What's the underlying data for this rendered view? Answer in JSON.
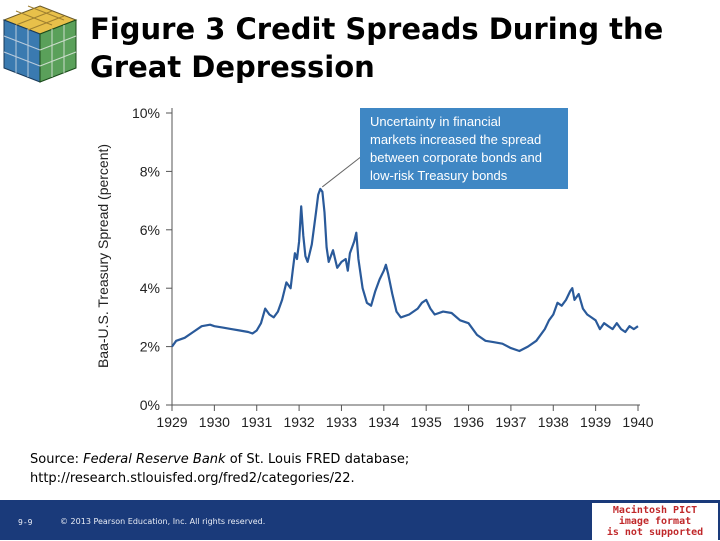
{
  "title_line1": "Figure 3  Credit Spreads During the",
  "title_line2": "Great Depression",
  "source": {
    "prefix": "Source: ",
    "italic": "Federal Reserve Bank",
    "rest": " of St. Louis FRED database;",
    "url": "http://research.stlouisfed.org/fred2/categories/22."
  },
  "footer": {
    "page": "9-9",
    "copyright": "© 2013 Pearson Education, Inc. All rights reserved."
  },
  "pict_notice": [
    "Macintosh PICT",
    "image format",
    "is not supported"
  ],
  "chart_data": {
    "type": "line",
    "title": "Figure 3  Credit Spreads During the Great Depression",
    "xlabel": "",
    "ylabel": "Baa-U.S. Treasury Spread (percent)",
    "xlim": [
      1929,
      1940
    ],
    "ylim": [
      0,
      10
    ],
    "x_ticks": [
      "1929",
      "1930",
      "1931",
      "1932",
      "1933",
      "1934",
      "1935",
      "1936",
      "1937",
      "1938",
      "1939",
      "1940"
    ],
    "y_ticks": [
      "0%",
      "2%",
      "4%",
      "6%",
      "8%",
      "10%"
    ],
    "annotation": {
      "lines": [
        "Uncertainty in financial",
        "markets increased the spread",
        "between corporate bonds and",
        "low-risk Treasury bonds"
      ],
      "points_to": [
        1932.5,
        7.4
      ]
    },
    "series": [
      {
        "name": "Baa-U.S. Treasury Spread",
        "color": "#2a5a9a",
        "points": [
          [
            1929.0,
            2.0
          ],
          [
            1929.1,
            2.2
          ],
          [
            1929.3,
            2.3
          ],
          [
            1929.5,
            2.5
          ],
          [
            1929.7,
            2.7
          ],
          [
            1929.9,
            2.75
          ],
          [
            1930.0,
            2.7
          ],
          [
            1930.2,
            2.65
          ],
          [
            1930.4,
            2.6
          ],
          [
            1930.6,
            2.55
          ],
          [
            1930.8,
            2.5
          ],
          [
            1930.9,
            2.45
          ],
          [
            1931.0,
            2.55
          ],
          [
            1931.1,
            2.8
          ],
          [
            1931.2,
            3.3
          ],
          [
            1931.3,
            3.1
          ],
          [
            1931.4,
            3.0
          ],
          [
            1931.5,
            3.2
          ],
          [
            1931.6,
            3.6
          ],
          [
            1931.7,
            4.2
          ],
          [
            1931.8,
            4.0
          ],
          [
            1931.85,
            4.6
          ],
          [
            1931.9,
            5.2
          ],
          [
            1931.95,
            5.0
          ],
          [
            1932.0,
            5.6
          ],
          [
            1932.05,
            6.8
          ],
          [
            1932.1,
            5.8
          ],
          [
            1932.15,
            5.1
          ],
          [
            1932.2,
            4.9
          ],
          [
            1932.3,
            5.5
          ],
          [
            1932.4,
            6.6
          ],
          [
            1932.45,
            7.2
          ],
          [
            1932.5,
            7.4
          ],
          [
            1932.55,
            7.3
          ],
          [
            1932.6,
            6.6
          ],
          [
            1932.65,
            5.4
          ],
          [
            1932.7,
            4.9
          ],
          [
            1932.8,
            5.3
          ],
          [
            1932.85,
            5.0
          ],
          [
            1932.9,
            4.7
          ],
          [
            1933.0,
            4.9
          ],
          [
            1933.1,
            5.0
          ],
          [
            1933.15,
            4.6
          ],
          [
            1933.2,
            5.2
          ],
          [
            1933.3,
            5.6
          ],
          [
            1933.35,
            5.9
          ],
          [
            1933.4,
            5.0
          ],
          [
            1933.5,
            4.0
          ],
          [
            1933.6,
            3.5
          ],
          [
            1933.7,
            3.4
          ],
          [
            1933.8,
            3.9
          ],
          [
            1933.9,
            4.3
          ],
          [
            1934.0,
            4.6
          ],
          [
            1934.05,
            4.8
          ],
          [
            1934.1,
            4.5
          ],
          [
            1934.2,
            3.8
          ],
          [
            1934.3,
            3.2
          ],
          [
            1934.4,
            3.0
          ],
          [
            1934.6,
            3.1
          ],
          [
            1934.8,
            3.3
          ],
          [
            1934.9,
            3.5
          ],
          [
            1935.0,
            3.6
          ],
          [
            1935.1,
            3.3
          ],
          [
            1935.2,
            3.1
          ],
          [
            1935.4,
            3.2
          ],
          [
            1935.6,
            3.15
          ],
          [
            1935.8,
            2.9
          ],
          [
            1936.0,
            2.8
          ],
          [
            1936.2,
            2.4
          ],
          [
            1936.4,
            2.2
          ],
          [
            1936.6,
            2.15
          ],
          [
            1936.8,
            2.1
          ],
          [
            1937.0,
            1.95
          ],
          [
            1937.2,
            1.85
          ],
          [
            1937.4,
            2.0
          ],
          [
            1937.6,
            2.2
          ],
          [
            1937.8,
            2.6
          ],
          [
            1937.9,
            2.9
          ],
          [
            1938.0,
            3.1
          ],
          [
            1938.1,
            3.5
          ],
          [
            1938.2,
            3.4
          ],
          [
            1938.3,
            3.6
          ],
          [
            1938.4,
            3.9
          ],
          [
            1938.45,
            4.0
          ],
          [
            1938.5,
            3.6
          ],
          [
            1938.6,
            3.8
          ],
          [
            1938.7,
            3.3
          ],
          [
            1938.8,
            3.1
          ],
          [
            1938.9,
            3.0
          ],
          [
            1939.0,
            2.9
          ],
          [
            1939.1,
            2.6
          ],
          [
            1939.2,
            2.8
          ],
          [
            1939.3,
            2.7
          ],
          [
            1939.4,
            2.6
          ],
          [
            1939.5,
            2.8
          ],
          [
            1939.6,
            2.6
          ],
          [
            1939.7,
            2.5
          ],
          [
            1939.8,
            2.7
          ],
          [
            1939.9,
            2.6
          ],
          [
            1940.0,
            2.7
          ]
        ]
      }
    ]
  }
}
